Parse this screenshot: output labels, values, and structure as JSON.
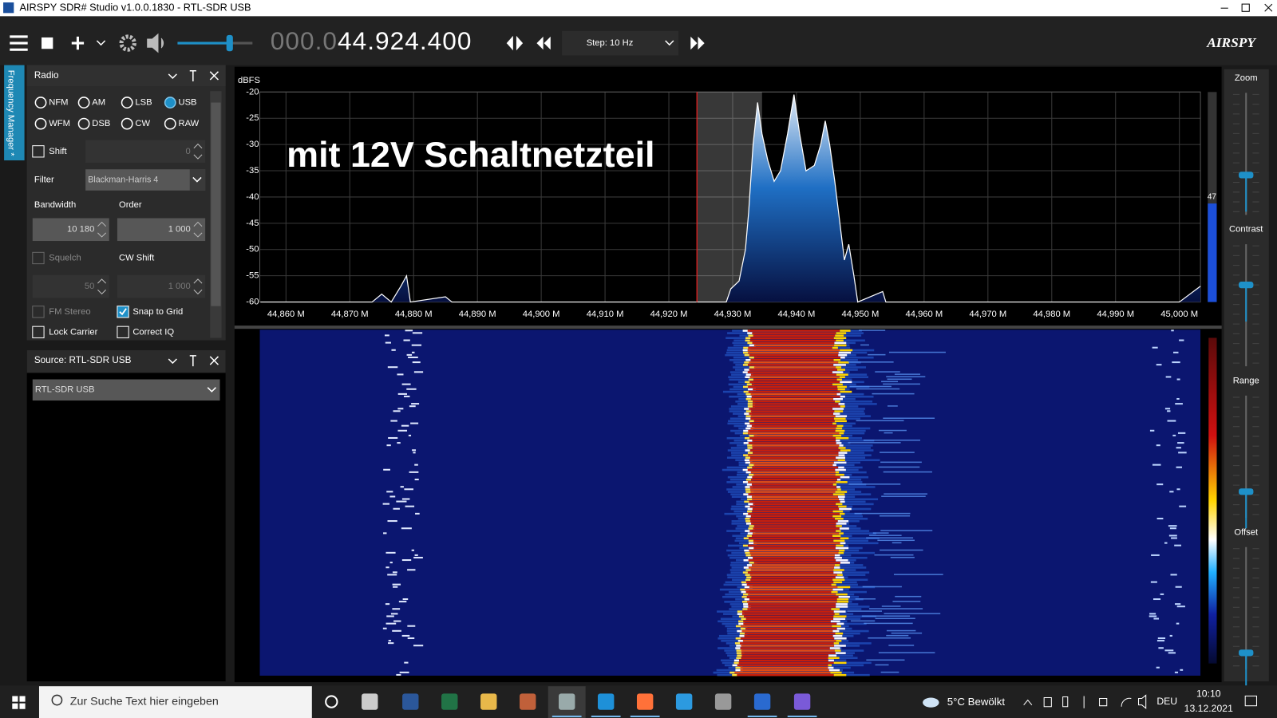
{
  "window": {
    "title": "AIRSPY SDR# Studio v1.0.0.1830 - RTL-SDR USB"
  },
  "toolbar": {
    "frequency_dim": "000.0",
    "frequency": "44.924.400",
    "step": "Step: 10 Hz",
    "logo": "AIRSPY"
  },
  "side_tab": "Frequency Manager *",
  "radio_panel": {
    "title": "Radio",
    "modes": [
      "NFM",
      "AM",
      "LSB",
      "USB",
      "WFM",
      "DSB",
      "CW",
      "RAW"
    ],
    "selected_mode_index": 3,
    "shift_label": "Shift",
    "shift_value": "0",
    "filter_label": "Filter",
    "filter_value": "Blackman-Harris 4",
    "bandwidth_label": "Bandwidth",
    "bandwidth_value": "10 180",
    "order_label": "Order",
    "order_value": "1 000",
    "squelch_label": "Squelch",
    "squelch_value": "50",
    "cw_shift_label": "CW Shift",
    "cw_shift_value": "1 000",
    "fm_stereo": "FM Stereo",
    "snap_to_grid": "Snap to Grid",
    "lock_carrier": "Lock Carrier",
    "correct_iq": "Correct IQ"
  },
  "source_panel": {
    "title": "Source: RTL-SDR USB",
    "device": "RTL-SDR USB"
  },
  "chart_data": {
    "type": "line",
    "y_label": "dBFS",
    "annotation": "mit 12V Schaltnetzteil",
    "color": "#ffffff",
    "grid": true,
    "x": [
      44.856,
      44.8735,
      44.875,
      44.8765,
      44.878,
      44.8789,
      44.8795,
      44.885,
      44.886,
      44.929,
      44.9297,
      44.931,
      44.932,
      44.9325,
      44.9332,
      44.9339,
      44.9346,
      44.9355,
      44.9365,
      44.9375,
      44.9386,
      44.9396,
      44.9405,
      44.9415,
      44.9428,
      44.9438,
      44.9445,
      44.9452,
      44.946,
      44.9468,
      44.9475,
      44.9482,
      44.949,
      44.9496,
      44.9535,
      44.954,
      45.0,
      45.0033
    ],
    "values": [
      -60,
      -60,
      -58.5,
      -60,
      -57,
      -55,
      -60,
      -59,
      -60,
      -60,
      -57.5,
      -56,
      -50,
      -43,
      -30,
      -22,
      -28,
      -33,
      -37,
      -35,
      -28,
      -20.5,
      -28,
      -35,
      -34,
      -30,
      -25.5,
      -30,
      -37,
      -45,
      -52,
      -49,
      -55,
      -60,
      -58,
      -60,
      -60,
      -57
    ],
    "xlim": [
      44.8559,
      45.0033
    ],
    "ylim": [
      -60,
      -20
    ],
    "yticks": [
      -20,
      -25,
      -30,
      -35,
      -40,
      -45,
      -50,
      -55,
      -60
    ],
    "xticks": [
      {
        "value": 44.86,
        "label": "44,860 M"
      },
      {
        "value": 44.87,
        "label": "44,870 M"
      },
      {
        "value": 44.88,
        "label": "44,880 M"
      },
      {
        "value": 44.89,
        "label": "44,890 M"
      },
      {
        "value": 44.9,
        "label": "44,900 M"
      },
      {
        "value": 44.91,
        "label": "44,910 M"
      },
      {
        "value": 44.92,
        "label": "44,920 M"
      },
      {
        "value": 44.93,
        "label": "44,930 M"
      },
      {
        "value": 44.94,
        "label": "44,940 M"
      },
      {
        "value": 44.95,
        "label": "44,950 M"
      },
      {
        "value": 44.96,
        "label": "44,960 M"
      },
      {
        "value": 44.97,
        "label": "44,970 M"
      },
      {
        "value": 44.98,
        "label": "44,980 M"
      },
      {
        "value": 44.99,
        "label": "44,990 M"
      },
      {
        "value": 45.0,
        "label": "45,000 M"
      }
    ],
    "tuned_frequency": 44.9244,
    "passband": [
      44.9244,
      44.9346
    ],
    "level_indicator": 47
  },
  "right_panel": {
    "zoom": "Zoom",
    "contrast": "Contrast",
    "range": "Range",
    "offset": "Offset"
  },
  "taskbar": {
    "search": "Zur Suche Text hier eingeben",
    "weather": "5°C Bewölkt",
    "language": "DEU",
    "time": "10:10",
    "date": "13.12.2021"
  }
}
